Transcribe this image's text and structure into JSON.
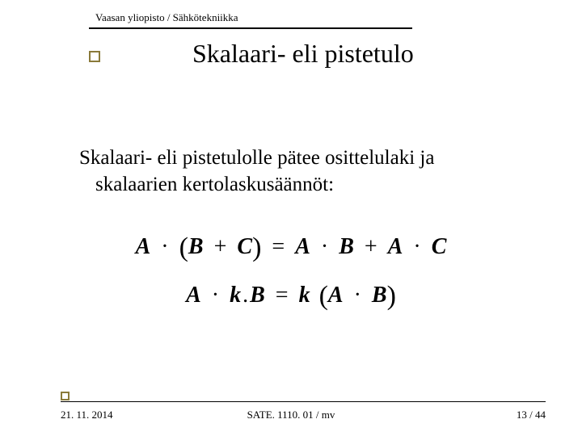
{
  "header": {
    "institution": "Vaasan yliopisto / Sähkötekniikka"
  },
  "title": "Skalaari- eli pistetulo",
  "body": {
    "line1": "Skalaari- eli pistetulolle pätee osittelulaki ja",
    "line2": "skalaarien kertolaskusäännöt:"
  },
  "equations": {
    "eq1": {
      "A": "A",
      "B": "B",
      "C": "C",
      "dot": "·",
      "plus": "+",
      "eq": "=",
      "lparen": "(",
      "rparen": ")"
    },
    "eq2": {
      "A": "A",
      "k": "k",
      "B": "B",
      "dot": "·",
      "period": ".",
      "eq": "=",
      "lparen": "(",
      "rparen": ")"
    }
  },
  "footer": {
    "date": "21. 11. 2014",
    "course": "SATE. 1110. 01 / mv",
    "page": "13 / 44"
  },
  "colors": {
    "accent": "#8a7a3a",
    "text": "#000000",
    "background": "#ffffff"
  }
}
